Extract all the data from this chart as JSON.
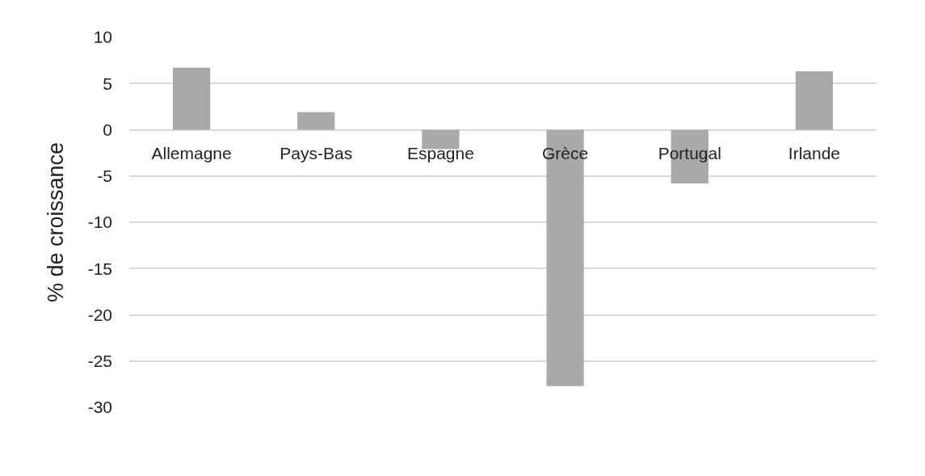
{
  "chart_data": {
    "type": "bar",
    "ylabel": "% de croissance",
    "categories": [
      "Allemagne",
      "Pays-Bas",
      "Espagne",
      "Grèce",
      "Portugal",
      "Irlande"
    ],
    "values": [
      6.7,
      1.9,
      -2.1,
      -27.7,
      -5.8,
      6.3
    ],
    "color": "#a8a9aa",
    "ylim": [
      -30,
      10
    ],
    "yticks": [
      -30,
      -25,
      -20,
      -15,
      -10,
      -5,
      0,
      5,
      10
    ],
    "grid": "y"
  }
}
